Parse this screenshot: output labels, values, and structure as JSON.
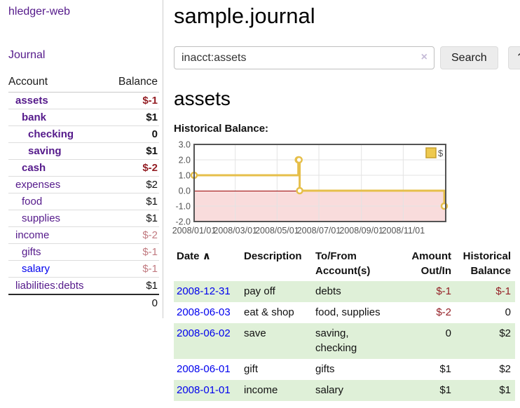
{
  "colors": {
    "link_purple": "#551A8B",
    "link_blue": "#0000EE",
    "negative_strong": "#941F25",
    "negative_muted": "#C17A80",
    "row_green": "#DFF0D8",
    "chart_line": "#E6BF4A",
    "chart_negative_fill": "#F9DCDC",
    "chart_zero_line": "#990000",
    "chart_border": "#545454",
    "chart_grid": "#E3E3E3"
  },
  "sidebar": {
    "app_title": "hledger-web",
    "journal_link": "Journal",
    "accounts": {
      "header_account": "Account",
      "header_balance": "Balance",
      "rows": [
        {
          "label": "assets",
          "balance": "$-1",
          "depth": 1,
          "strong": true,
          "label_color": "purple",
          "balance_color": "red"
        },
        {
          "label": "bank",
          "balance": "$1",
          "depth": 2,
          "strong": true,
          "label_color": "purple",
          "balance_color": "black"
        },
        {
          "label": "checking",
          "balance": "0",
          "depth": 3,
          "strong": true,
          "label_color": "purple",
          "balance_color": "black"
        },
        {
          "label": "saving",
          "balance": "$1",
          "depth": 3,
          "strong": true,
          "label_color": "purple",
          "balance_color": "black"
        },
        {
          "label": "cash",
          "balance": "$-2",
          "depth": 2,
          "strong": true,
          "label_color": "purple",
          "balance_color": "red"
        },
        {
          "label": "expenses",
          "balance": "$2",
          "depth": 1,
          "strong": false,
          "label_color": "purple",
          "balance_color": "black"
        },
        {
          "label": "food",
          "balance": "$1",
          "depth": 2,
          "strong": false,
          "label_color": "purple",
          "balance_color": "black"
        },
        {
          "label": "supplies",
          "balance": "$1",
          "depth": 2,
          "strong": false,
          "label_color": "purple",
          "balance_color": "black"
        },
        {
          "label": "income",
          "balance": "$-2",
          "depth": 1,
          "strong": false,
          "label_color": "purple",
          "balance_color": "rose"
        },
        {
          "label": "gifts",
          "balance": "$-1",
          "depth": 2,
          "strong": false,
          "label_color": "purple",
          "balance_color": "rose"
        },
        {
          "label": "salary",
          "balance": "$-1",
          "depth": 2,
          "strong": false,
          "label_color": "blue",
          "balance_color": "rose"
        },
        {
          "label": "liabilities:debts",
          "balance": "$1",
          "depth": 1,
          "strong": false,
          "label_color": "purple",
          "balance_color": "black"
        }
      ],
      "total": "0"
    }
  },
  "main": {
    "title": "sample.journal",
    "search": {
      "value": "inacct:assets",
      "clear_icon": "×",
      "search_button": "Search",
      "help_button": "?"
    },
    "account_heading": "assets",
    "chart_title": "Historical Balance:",
    "chart_data": {
      "type": "line",
      "line_style": "step",
      "series": [
        {
          "name": "$",
          "color": "#E6BF4A",
          "points": [
            {
              "date": "2008-01-01",
              "value": 1.0
            },
            {
              "date": "2008-06-01",
              "value": 2.0
            },
            {
              "date": "2008-06-02",
              "value": 2.0
            },
            {
              "date": "2008-06-03",
              "value": 0.0
            },
            {
              "date": "2008-12-31",
              "value": -1.0
            }
          ]
        }
      ],
      "ylim": [
        -2.0,
        3.0
      ],
      "yticks": [
        "3.0",
        "2.0",
        "1.0",
        "0.0",
        "-1.0",
        "-2.0"
      ],
      "xticks": [
        {
          "label": "2008/01/01",
          "date": "2008-01-01"
        },
        {
          "label": "2008/03/01",
          "date": "2008-03-01"
        },
        {
          "label": "2008/05/01",
          "date": "2008-05-01"
        },
        {
          "label": "2008/07/01",
          "date": "2008-07-01"
        },
        {
          "label": "2008/09/01",
          "date": "2008-09-01"
        },
        {
          "label": "2008/11/01",
          "date": "2008-11-01"
        }
      ],
      "x_range": {
        "start": "2008-01-01",
        "end": "2009-01-02"
      },
      "legend": {
        "position": "top-right",
        "label": "$"
      },
      "grid": true,
      "negative_region_shaded": true
    },
    "register": {
      "headers": {
        "date": "Date",
        "sort_icon": "∧",
        "description": "Description",
        "accounts_line1": "To/From",
        "accounts_line2": "Account(s)",
        "amount_line1": "Amount",
        "amount_line2": "Out/In",
        "balance_line1": "Historical",
        "balance_line2": "Balance"
      },
      "rows": [
        {
          "date": "2008-12-31",
          "description": "pay off",
          "accounts": "debts",
          "amount": "$-1",
          "balance": "$-1",
          "amount_color": "red",
          "balance_color": "red",
          "shaded": true
        },
        {
          "date": "2008-06-03",
          "description": "eat & shop",
          "accounts": "food, supplies",
          "amount": "$-2",
          "balance": "0",
          "amount_color": "red",
          "balance_color": "black",
          "shaded": false
        },
        {
          "date": "2008-06-02",
          "description": "save",
          "accounts": "saving,\nchecking",
          "amount": "0",
          "balance": "$2",
          "amount_color": "black",
          "balance_color": "black",
          "shaded": true
        },
        {
          "date": "2008-06-01",
          "description": "gift",
          "accounts": "gifts",
          "amount": "$1",
          "balance": "$2",
          "amount_color": "black",
          "balance_color": "black",
          "shaded": false
        },
        {
          "date": "2008-01-01",
          "description": "income",
          "accounts": "salary",
          "amount": "$1",
          "balance": "$1",
          "amount_color": "black",
          "balance_color": "black",
          "shaded": true
        }
      ]
    }
  }
}
